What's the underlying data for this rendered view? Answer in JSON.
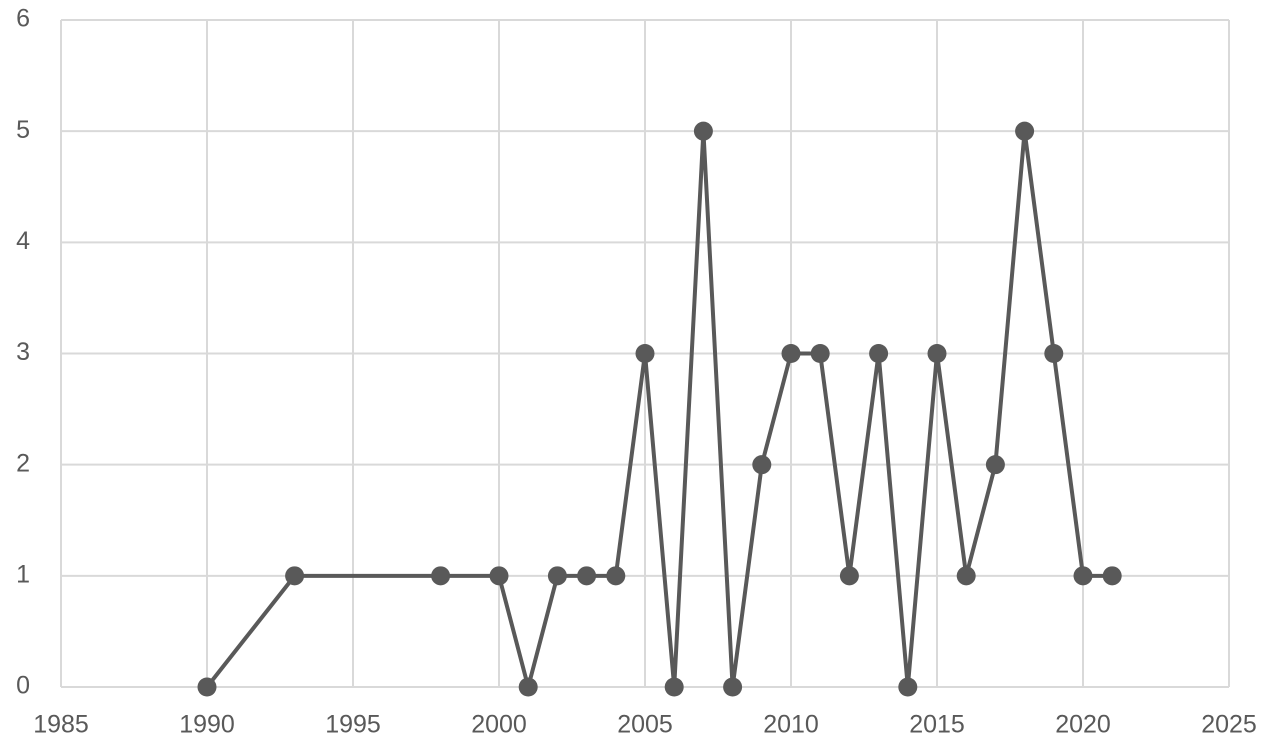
{
  "chart_data": {
    "type": "line",
    "x": [
      1990,
      1993,
      1998,
      2000,
      2001,
      2002,
      2003,
      2004,
      2005,
      2006,
      2007,
      2008,
      2009,
      2010,
      2011,
      2012,
      2013,
      2014,
      2015,
      2016,
      2017,
      2018,
      2019,
      2020,
      2021
    ],
    "values": [
      0,
      1,
      1,
      1,
      0,
      1,
      1,
      1,
      3,
      0,
      5,
      0,
      2,
      3,
      3,
      1,
      3,
      0,
      3,
      1,
      2,
      5,
      3,
      1,
      1
    ],
    "color": "#595959",
    "xlim": [
      1985,
      2025
    ],
    "xticks": [
      1985,
      1990,
      1995,
      2000,
      2005,
      2010,
      2015,
      2020,
      2025
    ],
    "ylim": [
      0,
      6
    ],
    "yticks": [
      0,
      1,
      2,
      3,
      4,
      5,
      6
    ],
    "grid": true
  }
}
